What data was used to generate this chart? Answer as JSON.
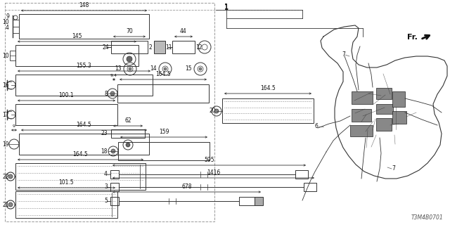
{
  "bg_color": "#ffffff",
  "text_color": "#111111",
  "diagram_number": "T3M4B0701",
  "lc": "#333333",
  "figsize": [
    6.4,
    3.2
  ],
  "dpi": 100
}
